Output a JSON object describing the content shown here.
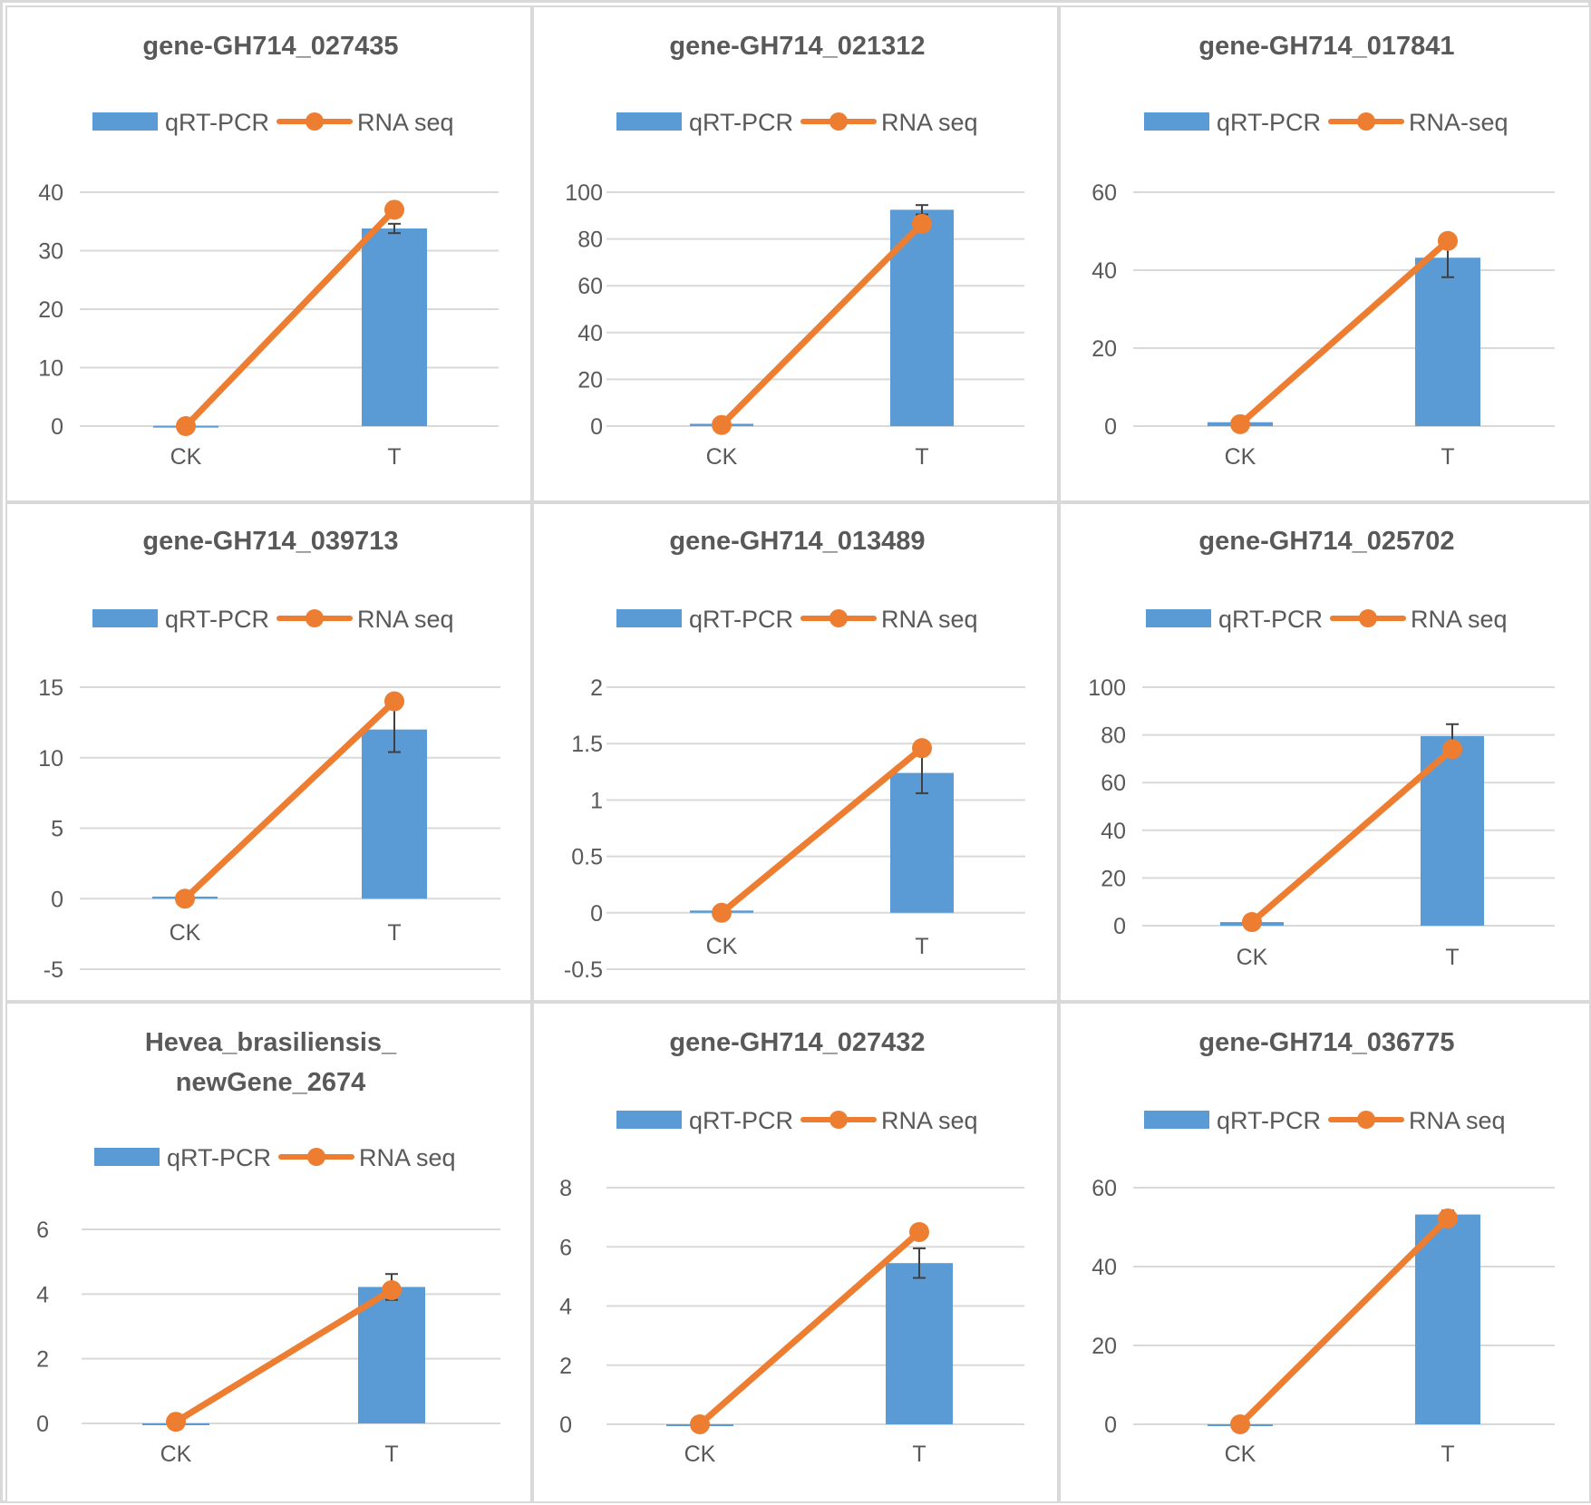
{
  "colors": {
    "bar": "#5b9bd5",
    "line": "#ed7d31",
    "gridline": "#d9d9d9",
    "text": "#595959",
    "error_bar": "#404040"
  },
  "chart_data": [
    {
      "type": "bar",
      "title": [
        "gene-GH714_027435"
      ],
      "categories": [
        "CK",
        "T"
      ],
      "yticks": [
        0,
        10,
        20,
        30,
        40
      ],
      "ylim": [
        0,
        40
      ],
      "legend": [
        "qRT-PCR",
        "RNA seq"
      ],
      "series": [
        {
          "name": "qRT-PCR",
          "type": "bar",
          "values": [
            0.05,
            33.8
          ],
          "errors": [
            0,
            0.8
          ]
        },
        {
          "name": "RNA seq",
          "type": "line",
          "values": [
            0,
            37
          ]
        }
      ]
    },
    {
      "type": "bar",
      "title": [
        "gene-GH714_021312"
      ],
      "categories": [
        "CK",
        "T"
      ],
      "yticks": [
        0,
        20,
        40,
        60,
        80,
        100
      ],
      "ylim": [
        0,
        100
      ],
      "legend": [
        "qRT-PCR",
        "RNA seq"
      ],
      "series": [
        {
          "name": "qRT-PCR",
          "type": "bar",
          "values": [
            1,
            92.5
          ],
          "errors": [
            0,
            2
          ]
        },
        {
          "name": "RNA seq",
          "type": "line",
          "values": [
            0.5,
            86.5
          ]
        }
      ]
    },
    {
      "type": "bar",
      "title": [
        "gene-GH714_017841"
      ],
      "categories": [
        "CK",
        "T"
      ],
      "yticks": [
        0,
        20,
        40,
        60
      ],
      "ylim": [
        0,
        60
      ],
      "legend": [
        "qRT-PCR",
        "RNA-seq"
      ],
      "series": [
        {
          "name": "qRT-PCR",
          "type": "bar",
          "values": [
            1,
            43.2
          ],
          "errors": [
            0,
            5
          ]
        },
        {
          "name": "RNA-seq",
          "type": "line",
          "values": [
            0.5,
            47.5
          ]
        }
      ]
    },
    {
      "type": "bar",
      "title": [
        "gene-GH714_039713"
      ],
      "categories": [
        "CK",
        "T"
      ],
      "yticks": [
        -5,
        0,
        5,
        10,
        15
      ],
      "ylim": [
        -5,
        15
      ],
      "legend": [
        "qRT-PCR",
        "RNA seq"
      ],
      "series": [
        {
          "name": "qRT-PCR",
          "type": "bar",
          "values": [
            0.15,
            12
          ],
          "errors": [
            0,
            1.6
          ]
        },
        {
          "name": "RNA seq",
          "type": "line",
          "values": [
            0,
            14
          ]
        }
      ]
    },
    {
      "type": "bar",
      "title": [
        "gene-GH714_013489"
      ],
      "categories": [
        "CK",
        "T"
      ],
      "yticks": [
        -0.5,
        0,
        0.5,
        1,
        1.5,
        2
      ],
      "yticklabels": [
        "-0.5",
        "0",
        "0.5",
        "1",
        "1.5",
        "2"
      ],
      "ylim": [
        -0.5,
        2
      ],
      "legend": [
        "qRT-PCR",
        "RNA seq"
      ],
      "series": [
        {
          "name": "qRT-PCR",
          "type": "bar",
          "values": [
            0.02,
            1.24
          ],
          "errors": [
            0,
            0.18
          ]
        },
        {
          "name": "RNA seq",
          "type": "line",
          "values": [
            0,
            1.46
          ]
        }
      ]
    },
    {
      "type": "bar",
      "title": [
        "gene-GH714_025702"
      ],
      "categories": [
        "CK",
        "T"
      ],
      "yticks": [
        0,
        20,
        40,
        60,
        80,
        100
      ],
      "ylim": [
        0,
        100
      ],
      "legend": [
        "qRT-PCR",
        "RNA seq"
      ],
      "series": [
        {
          "name": "qRT-PCR",
          "type": "bar",
          "values": [
            1.5,
            79.5
          ],
          "errors": [
            0,
            5
          ]
        },
        {
          "name": "RNA seq",
          "type": "line",
          "values": [
            1.5,
            74
          ]
        }
      ]
    },
    {
      "type": "bar",
      "title": [
        "Hevea_brasiliensis_",
        "newGene_2674"
      ],
      "categories": [
        "CK",
        "T"
      ],
      "yticks": [
        0,
        2,
        4,
        6
      ],
      "ylim": [
        0,
        6
      ],
      "legend": [
        "qRT-PCR",
        "RNA seq"
      ],
      "series": [
        {
          "name": "qRT-PCR",
          "type": "bar",
          "values": [
            0,
            4.22
          ],
          "errors": [
            0,
            0.4
          ]
        },
        {
          "name": "RNA seq",
          "type": "line",
          "values": [
            0.05,
            4.12
          ]
        }
      ]
    },
    {
      "type": "bar",
      "title": [
        "gene-GH714_027432"
      ],
      "categories": [
        "CK",
        "T"
      ],
      "yticks": [
        0,
        2,
        4,
        6,
        8
      ],
      "ylim": [
        0,
        8
      ],
      "legend": [
        "qRT-PCR",
        "RNA seq"
      ],
      "series": [
        {
          "name": "qRT-PCR",
          "type": "bar",
          "values": [
            0,
            5.45
          ],
          "errors": [
            0,
            0.5
          ]
        },
        {
          "name": "RNA seq",
          "type": "line",
          "values": [
            0,
            6.5
          ]
        }
      ]
    },
    {
      "type": "bar",
      "title": [
        "gene-GH714_036775"
      ],
      "categories": [
        "CK",
        "T"
      ],
      "yticks": [
        0,
        20,
        40,
        60
      ],
      "ylim": [
        0,
        60
      ],
      "legend": [
        "qRT-PCR",
        "RNA seq"
      ],
      "series": [
        {
          "name": "qRT-PCR",
          "type": "bar",
          "values": [
            0,
            53.2
          ],
          "errors": [
            0,
            1
          ]
        },
        {
          "name": "RNA seq",
          "type": "line",
          "values": [
            0,
            52.2
          ]
        }
      ]
    }
  ]
}
